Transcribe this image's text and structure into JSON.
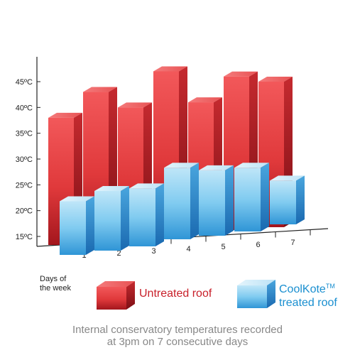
{
  "chart_data": {
    "type": "bar",
    "categories": [
      "1",
      "2",
      "3",
      "4",
      "5",
      "6",
      "7"
    ],
    "series": [
      {
        "name": "Untreated roof",
        "values": [
          38,
          43,
          40,
          47,
          41,
          46,
          45
        ],
        "color": "#e23a3c"
      },
      {
        "name": "CoolKote treated roof",
        "values": [
          22.5,
          24.5,
          25,
          29,
          28.5,
          29,
          26.5
        ],
        "color": "#5ab9ea"
      }
    ],
    "y_ticks": [
      "15ºC",
      "20ºC",
      "25ºC",
      "30ºC",
      "35ºC",
      "40ºC",
      "45ºC"
    ],
    "ylim": [
      12,
      50
    ],
    "xlabel_lines": [
      "Days of",
      "the week"
    ],
    "legend": {
      "untreated": "Untreated roof",
      "treated_line1": "CoolKote",
      "treated_tm": "TM",
      "treated_line2": "treated roof"
    },
    "caption_lines": [
      "Internal conservatory temperatures recorded",
      "at 3pm on 7 consecutive days"
    ]
  }
}
